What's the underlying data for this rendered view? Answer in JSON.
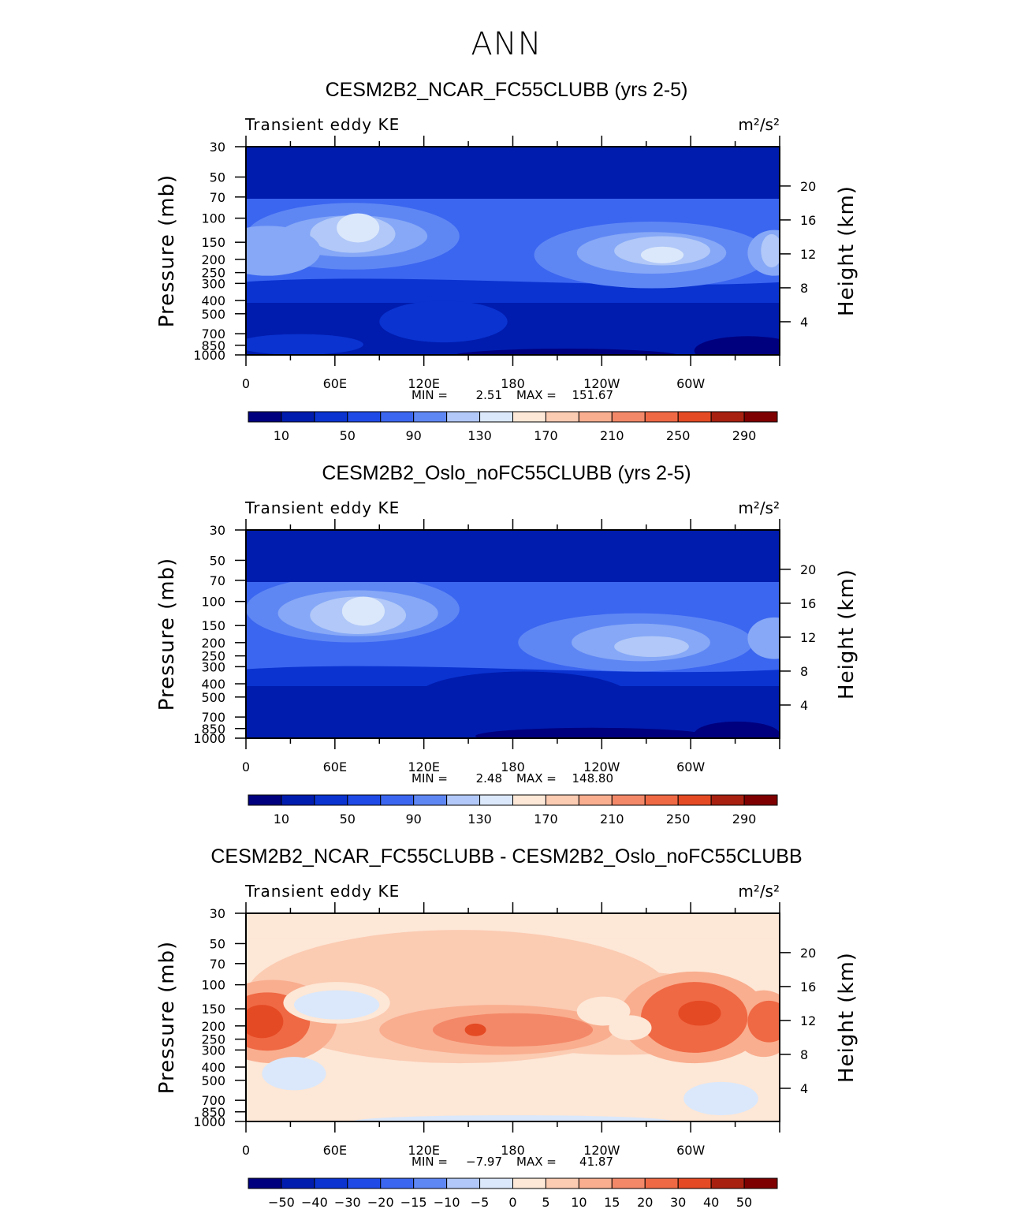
{
  "figure": {
    "title": "ANN"
  },
  "colors": {
    "scale": [
      "#00007f",
      "#001cae",
      "#0a33d0",
      "#1f4ae6",
      "#3b66f0",
      "#5f87f4",
      "#86a8f6",
      "#b1c8f8",
      "#dbe8fb",
      "#fde7d6",
      "#fbcbb2",
      "#f9ae8f",
      "#f38868",
      "#ef6944",
      "#e44a24",
      "#cc3315",
      "#a82010",
      "#7f0000"
    ]
  },
  "chart_data": [
    {
      "type": "heatmap",
      "title": "CESM2B2_NCAR_FC55CLUBB (yrs 2-5)",
      "variable": "Transient eddy KE",
      "units": "m²/s²",
      "ylabel": "Pressure (mb)",
      "y2label": "Height (km)",
      "x_ticks": [
        "0",
        "60E",
        "120E",
        "180",
        "120W",
        "60W"
      ],
      "y_ticks": [
        "30",
        "50",
        "70",
        "100",
        "150",
        "200",
        "250",
        "300",
        "400",
        "500",
        "700",
        "850",
        "1000"
      ],
      "y2_ticks": [
        "20",
        "16",
        "12",
        "8",
        "4"
      ],
      "stats": {
        "min_label": "MIN =",
        "min": "2.51",
        "max_label": "MAX =",
        "max": "151.67"
      },
      "colorbar_labels": [
        "10",
        "50",
        "90",
        "130",
        "170",
        "210",
        "250",
        "290"
      ],
      "field": [
        {
          "lon": 0,
          "p": 30,
          "v": 10
        },
        {
          "lon": 70,
          "p": 150,
          "v": 140
        },
        {
          "lon": 305,
          "p": 200,
          "v": 135
        },
        {
          "lon": 305,
          "p": 850,
          "v": 2.51
        }
      ]
    },
    {
      "type": "heatmap",
      "title": "CESM2B2_Oslo_noFC55CLUBB (yrs 2-5)",
      "variable": "Transient eddy KE",
      "units": "m²/s²",
      "ylabel": "Pressure (mb)",
      "y2label": "Height (km)",
      "x_ticks": [
        "0",
        "60E",
        "120E",
        "180",
        "120W",
        "60W"
      ],
      "y_ticks": [
        "30",
        "50",
        "70",
        "100",
        "150",
        "200",
        "250",
        "300",
        "400",
        "500",
        "700",
        "850",
        "1000"
      ],
      "y2_ticks": [
        "20",
        "16",
        "12",
        "8",
        "4"
      ],
      "stats": {
        "min_label": "MIN =",
        "min": "2.48",
        "max_label": "MAX =",
        "max": "148.80"
      },
      "colorbar_labels": [
        "10",
        "50",
        "90",
        "130",
        "170",
        "210",
        "250",
        "290"
      ],
      "field": [
        {
          "lon": 0,
          "p": 30,
          "v": 10
        },
        {
          "lon": 75,
          "p": 150,
          "v": 140
        },
        {
          "lon": 255,
          "p": 200,
          "v": 110
        },
        {
          "lon": 305,
          "p": 850,
          "v": 2.48
        }
      ]
    },
    {
      "type": "heatmap",
      "title": "CESM2B2_NCAR_FC55CLUBB - CESM2B2_Oslo_noFC55CLUBB",
      "variable": "Transient eddy KE",
      "units": "m²/s²",
      "ylabel": "Pressure (mb)",
      "y2label": "Height (km)",
      "x_ticks": [
        "0",
        "60E",
        "120E",
        "180",
        "120W",
        "60W"
      ],
      "y_ticks": [
        "30",
        "50",
        "70",
        "100",
        "150",
        "200",
        "250",
        "300",
        "400",
        "500",
        "700",
        "850",
        "1000"
      ],
      "y2_ticks": [
        "20",
        "16",
        "12",
        "8",
        "4"
      ],
      "stats": {
        "min_label": "MIN =",
        "min": "−7.97",
        "max_label": "MAX =",
        "max": "41.87"
      },
      "colorbar_labels": [
        "−50",
        "−40",
        "−30",
        "−20",
        "−15",
        "−10",
        "−5",
        "0",
        "5",
        "10",
        "15",
        "20",
        "30",
        "40",
        "50"
      ],
      "field": [
        {
          "lon": 0,
          "p": 30,
          "v": 2
        },
        {
          "lon": 10,
          "p": 200,
          "v": 25
        },
        {
          "lon": 95,
          "p": 150,
          "v": -5
        },
        {
          "lon": 290,
          "p": 150,
          "v": 41.87
        }
      ]
    }
  ]
}
